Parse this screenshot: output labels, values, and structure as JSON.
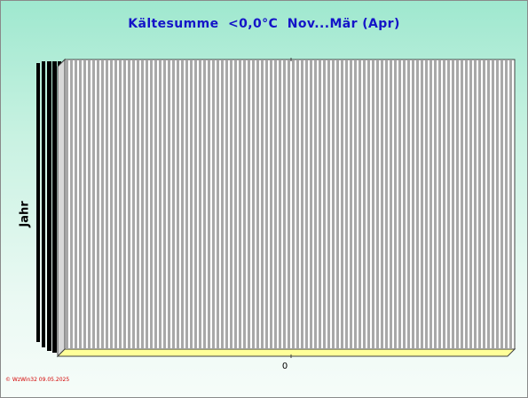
{
  "chart_data": {
    "type": "bar",
    "orientation": "horizontal",
    "title": "Kältesumme  <0,0°C  Nov...Mär (Apr)",
    "ylabel": "Jahr",
    "xlabel": "",
    "x_ticks": [
      "0"
    ],
    "categories": [],
    "series": [],
    "grid": true,
    "legend": "none"
  },
  "footer": "© WzWin32  09.05.2025",
  "colors": {
    "bg_top": "#9fe8cf",
    "bg_bottom": "#f6fcf9",
    "title": "#1414c8",
    "plot_stripe": "#a8a8a8",
    "plot_back": "#ffffff",
    "floor": "#ffff99",
    "footer": "#d40000"
  }
}
